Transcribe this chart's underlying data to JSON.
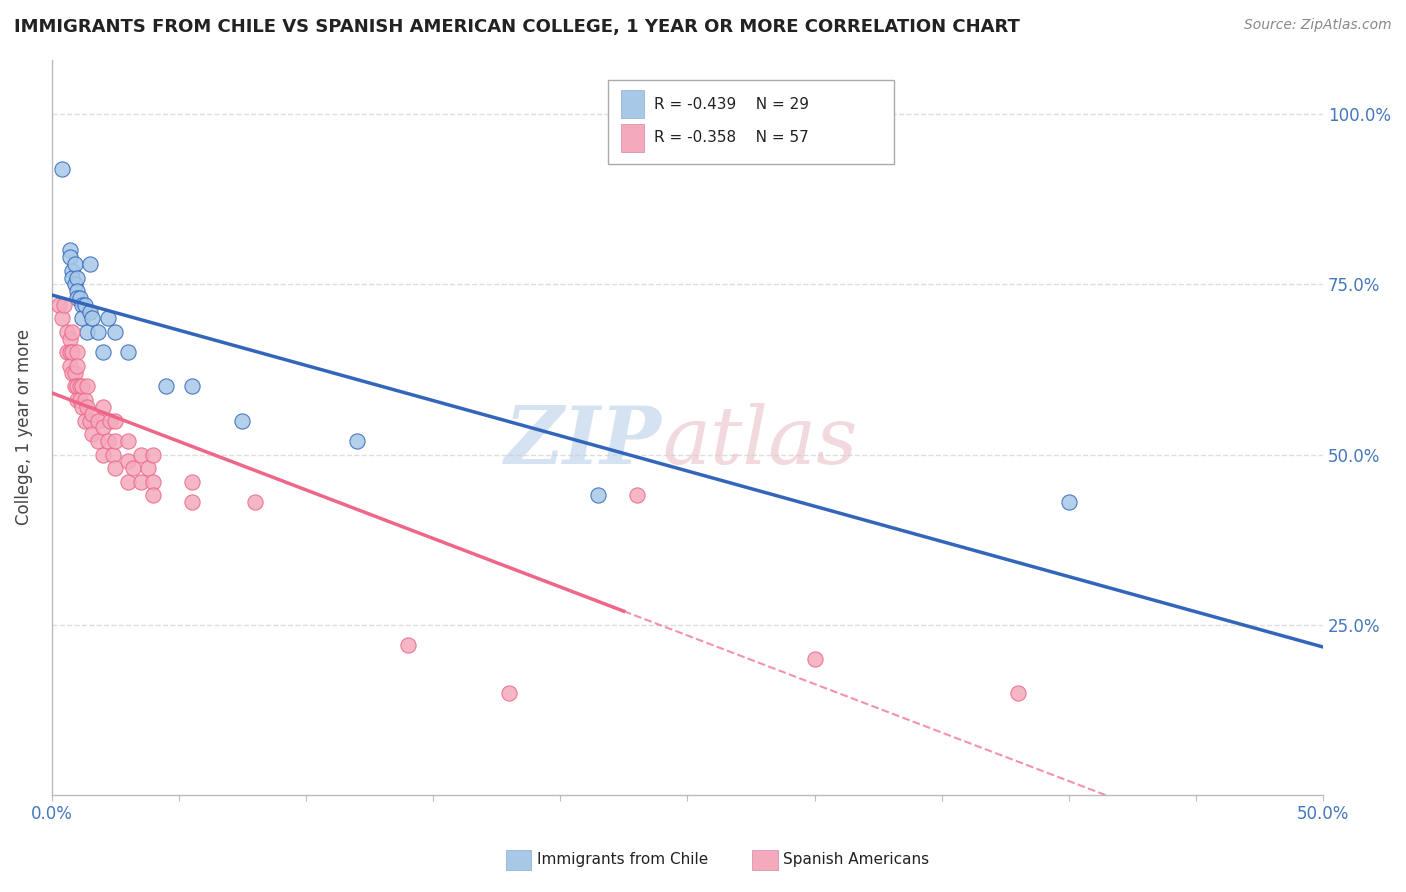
{
  "title": "IMMIGRANTS FROM CHILE VS SPANISH AMERICAN COLLEGE, 1 YEAR OR MORE CORRELATION CHART",
  "source": "Source: ZipAtlas.com",
  "ylabel": "College, 1 year or more",
  "legend_blue_r": "R = -0.439",
  "legend_blue_n": "N = 29",
  "legend_pink_r": "R = -0.358",
  "legend_pink_n": "N = 57",
  "blue_color": "#A8C8E8",
  "pink_color": "#F4AABC",
  "blue_line_color": "#3366BB",
  "pink_line_color": "#EE6688",
  "blue_scatter": [
    [
      0.004,
      0.92
    ],
    [
      0.007,
      0.8
    ],
    [
      0.007,
      0.79
    ],
    [
      0.008,
      0.77
    ],
    [
      0.008,
      0.76
    ],
    [
      0.009,
      0.78
    ],
    [
      0.009,
      0.75
    ],
    [
      0.01,
      0.76
    ],
    [
      0.01,
      0.74
    ],
    [
      0.01,
      0.73
    ],
    [
      0.011,
      0.73
    ],
    [
      0.012,
      0.72
    ],
    [
      0.012,
      0.7
    ],
    [
      0.013,
      0.72
    ],
    [
      0.014,
      0.68
    ],
    [
      0.015,
      0.78
    ],
    [
      0.015,
      0.71
    ],
    [
      0.016,
      0.7
    ],
    [
      0.018,
      0.68
    ],
    [
      0.02,
      0.65
    ],
    [
      0.022,
      0.7
    ],
    [
      0.025,
      0.68
    ],
    [
      0.03,
      0.65
    ],
    [
      0.045,
      0.6
    ],
    [
      0.055,
      0.6
    ],
    [
      0.075,
      0.55
    ],
    [
      0.12,
      0.52
    ],
    [
      0.215,
      0.44
    ],
    [
      0.4,
      0.43
    ]
  ],
  "pink_scatter": [
    [
      0.003,
      0.72
    ],
    [
      0.004,
      0.7
    ],
    [
      0.005,
      0.72
    ],
    [
      0.006,
      0.68
    ],
    [
      0.006,
      0.65
    ],
    [
      0.007,
      0.67
    ],
    [
      0.007,
      0.65
    ],
    [
      0.007,
      0.63
    ],
    [
      0.008,
      0.68
    ],
    [
      0.008,
      0.65
    ],
    [
      0.008,
      0.62
    ],
    [
      0.009,
      0.62
    ],
    [
      0.009,
      0.6
    ],
    [
      0.01,
      0.65
    ],
    [
      0.01,
      0.63
    ],
    [
      0.01,
      0.6
    ],
    [
      0.01,
      0.58
    ],
    [
      0.011,
      0.6
    ],
    [
      0.011,
      0.58
    ],
    [
      0.012,
      0.6
    ],
    [
      0.012,
      0.57
    ],
    [
      0.013,
      0.58
    ],
    [
      0.013,
      0.55
    ],
    [
      0.014,
      0.6
    ],
    [
      0.014,
      0.57
    ],
    [
      0.015,
      0.55
    ],
    [
      0.016,
      0.56
    ],
    [
      0.016,
      0.53
    ],
    [
      0.018,
      0.55
    ],
    [
      0.018,
      0.52
    ],
    [
      0.02,
      0.57
    ],
    [
      0.02,
      0.54
    ],
    [
      0.02,
      0.5
    ],
    [
      0.022,
      0.52
    ],
    [
      0.023,
      0.55
    ],
    [
      0.024,
      0.5
    ],
    [
      0.025,
      0.55
    ],
    [
      0.025,
      0.52
    ],
    [
      0.025,
      0.48
    ],
    [
      0.03,
      0.52
    ],
    [
      0.03,
      0.49
    ],
    [
      0.03,
      0.46
    ],
    [
      0.032,
      0.48
    ],
    [
      0.035,
      0.5
    ],
    [
      0.035,
      0.46
    ],
    [
      0.038,
      0.48
    ],
    [
      0.04,
      0.5
    ],
    [
      0.04,
      0.46
    ],
    [
      0.04,
      0.44
    ],
    [
      0.055,
      0.46
    ],
    [
      0.055,
      0.43
    ],
    [
      0.08,
      0.43
    ],
    [
      0.14,
      0.22
    ],
    [
      0.18,
      0.15
    ],
    [
      0.23,
      0.44
    ],
    [
      0.3,
      0.2
    ],
    [
      0.38,
      0.15
    ]
  ],
  "xlim": [
    0.0,
    0.5
  ],
  "ylim": [
    0.0,
    1.08
  ],
  "yticks": [
    0.25,
    0.5,
    0.75,
    1.0
  ],
  "ytick_labels": [
    "25.0%",
    "50.0%",
    "75.0%",
    "100.0%"
  ],
  "xtick_vals": [
    0.0,
    0.05,
    0.1,
    0.15,
    0.2,
    0.25,
    0.3,
    0.35,
    0.4,
    0.45,
    0.5
  ],
  "background_color": "#FFFFFF",
  "grid_color": "#DDDDDD",
  "grid_style": "--"
}
